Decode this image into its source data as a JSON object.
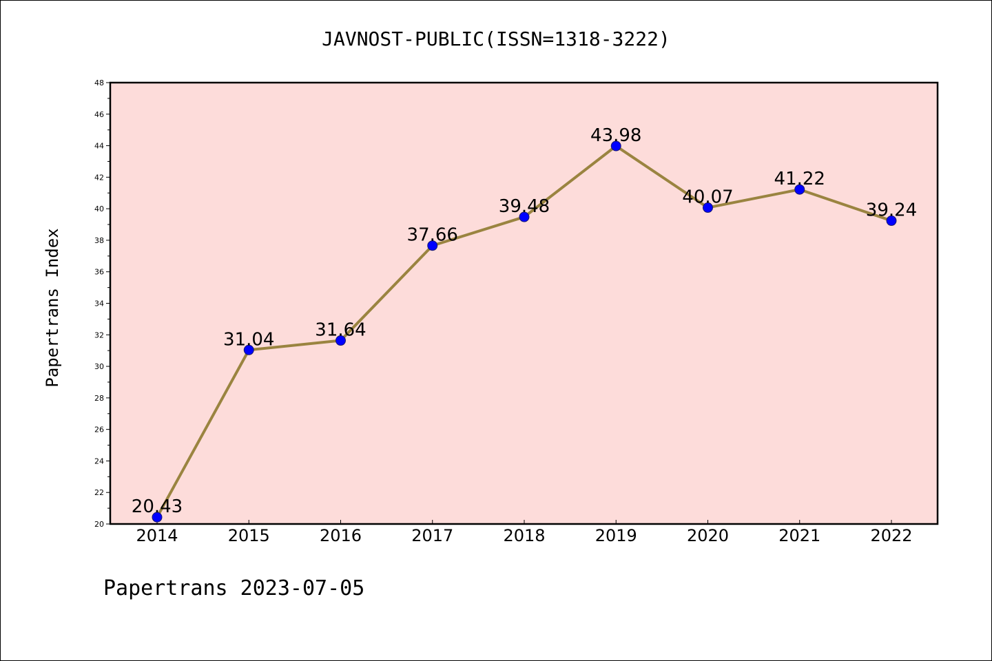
{
  "chart_data": {
    "type": "line",
    "title": "JAVNOST-PUBLIC(ISSN=1318-3222)",
    "ylabel": "Papertrans Index",
    "xlabel": "",
    "footer": "Papertrans 2023-07-05",
    "x": [
      "2014",
      "2015",
      "2016",
      "2017",
      "2018",
      "2019",
      "2020",
      "2021",
      "2022"
    ],
    "values": [
      20.43,
      31.04,
      31.64,
      37.66,
      39.48,
      43.98,
      40.07,
      41.22,
      39.24
    ],
    "data_labels": [
      "20.43",
      "31.04",
      "31.64",
      "37.66",
      "39.48",
      "43.98",
      "40.07",
      "41.22",
      "39.24"
    ],
    "ylim": [
      20,
      48
    ],
    "yticks": [
      20,
      22,
      24,
      26,
      28,
      30,
      32,
      34,
      36,
      38,
      40,
      42,
      44,
      46,
      48
    ],
    "grid": false,
    "colors": {
      "plot_background": "#fddcda",
      "line": "#9a8440",
      "marker": "#0000ff",
      "marker_edge": "#1a1a6e"
    }
  }
}
